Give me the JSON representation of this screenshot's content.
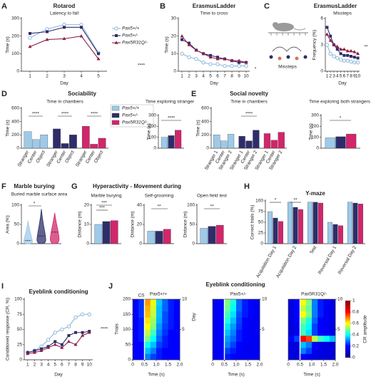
{
  "chart_data": [
    {
      "type": "line",
      "panel": "A",
      "title": "Rotarod",
      "subtitle": "Latency to fall",
      "xlabel": "Day",
      "ylabel": "Time (s)",
      "x": [
        1,
        2,
        3,
        4,
        5
      ],
      "xlim": [
        0.5,
        5.5
      ],
      "xticks": [
        1,
        2,
        3,
        4,
        5
      ],
      "ylim": [
        0,
        300
      ],
      "yticks": [
        0,
        100,
        200,
        300
      ],
      "legend": "right",
      "series": [
        {
          "name": "Pax5+/+",
          "color": "#8fb8dc",
          "marker": "circle",
          "values": [
            190,
            240,
            265,
            265,
            105
          ]
        },
        {
          "name": "Pax5+/-",
          "color": "#2e2d6b",
          "marker": "square",
          "values": [
            215,
            225,
            250,
            250,
            100
          ]
        },
        {
          "name": "Pax5R31Q/-",
          "color": "#8c2147",
          "marker": "triangle",
          "values": [
            140,
            180,
            185,
            200,
            70
          ]
        }
      ],
      "annotations": [
        "****"
      ]
    },
    {
      "type": "line",
      "panel": "B",
      "title": "ErasmusLadder",
      "subtitle": "Time to cross",
      "xlabel": "Day",
      "ylabel": "Time (s)",
      "x": [
        1,
        2,
        3,
        4,
        5,
        6,
        7,
        8,
        9,
        10
      ],
      "xlim": [
        0.5,
        10.5
      ],
      "xticks": [
        1,
        2,
        3,
        4,
        5,
        6,
        7,
        8,
        9,
        10
      ],
      "ylim": [
        0,
        30
      ],
      "yticks": [
        0,
        10,
        20,
        30
      ],
      "series": [
        {
          "color": "#8fb8dc",
          "marker": "circle",
          "values": [
            10,
            8,
            7,
            5,
            4,
            4,
            3,
            3,
            3,
            3
          ]
        },
        {
          "color": "#2e2d6b",
          "marker": "square",
          "values": [
            18,
            16,
            12,
            10,
            9,
            8,
            7,
            6,
            5,
            5
          ]
        },
        {
          "color": "#8c2147",
          "marker": "triangle",
          "values": [
            20,
            15,
            12,
            10,
            8,
            7,
            7,
            6,
            6,
            5
          ]
        }
      ],
      "annotations": [
        "*"
      ]
    },
    {
      "type": "line",
      "panel": "C",
      "title": "ErasmusLadder",
      "subtitle": "Missteps",
      "illustration_label": "Missteps",
      "xlabel": "Day",
      "ylabel": "Frequency (%)",
      "x": [
        1,
        2,
        3,
        4,
        5,
        6,
        7,
        8,
        9,
        10
      ],
      "xlim": [
        0.5,
        10.5
      ],
      "xticks": [
        1,
        2,
        3,
        4,
        5,
        6,
        7,
        8,
        9,
        10
      ],
      "ylim": [
        0,
        6
      ],
      "yticks": [
        0,
        3,
        6
      ],
      "series": [
        {
          "color": "#8fb8dc",
          "marker": "circle",
          "values": [
            3,
            2,
            1.7,
            1.5,
            1.3,
            1.2,
            1.2,
            1.1,
            1,
            1
          ]
        },
        {
          "color": "#2e2d6b",
          "marker": "square",
          "values": [
            5,
            4,
            3,
            2.5,
            2,
            1.8,
            1.8,
            1.7,
            1.6,
            1.5
          ]
        },
        {
          "color": "#8c2147",
          "marker": "triangle",
          "values": [
            4.2,
            3.5,
            3,
            2.8,
            2.5,
            2.5,
            2.3,
            2.3,
            2.2,
            2
          ]
        }
      ],
      "annotations": [
        "**"
      ]
    },
    {
      "type": "blockbar",
      "panel": "D",
      "title": "Sociability",
      "subtitle": "Time in chambers",
      "ylabel": "Time (s)",
      "categories": [
        "Stranger",
        "Center",
        "Object"
      ],
      "ylim": [
        0,
        600
      ],
      "yticks": [
        0,
        200,
        400,
        600
      ],
      "legend": "top",
      "series": [
        {
          "name": "Pax5+/+",
          "color": "#9ecae9",
          "values": [
            250,
            130,
            200
          ]
        },
        {
          "name": "Pax5+/-",
          "color": "#2e2d6b",
          "values": [
            290,
            70,
            200
          ]
        },
        {
          "name": "Pax5R31Q/-",
          "color": "#d1266b",
          "values": [
            330,
            60,
            150
          ]
        }
      ],
      "annotations": [
        "****",
        "****",
        "****"
      ]
    },
    {
      "type": "bar",
      "subtitle": "Time exploring stranger",
      "ylabel": "Time (s)",
      "ylim": [
        0,
        300
      ],
      "yticks": [
        0,
        100,
        200,
        300
      ],
      "series": [
        {
          "color": "#9ecae9",
          "values": [
            100
          ]
        },
        {
          "color": "#2e2d6b",
          "values": [
            115
          ]
        },
        {
          "color": "#d1266b",
          "values": [
            165
          ]
        }
      ],
      "annotations": [
        "****"
      ]
    },
    {
      "type": "blockbar",
      "panel": "E",
      "title": "Social novelty",
      "subtitle": "Time in chambers",
      "ylabel": "Time (s)",
      "categories": [
        "Stranger 1",
        "Center",
        "Stranger 2"
      ],
      "ylim": [
        0,
        600
      ],
      "yticks": [
        0,
        200,
        400,
        600
      ],
      "series": [
        {
          "color": "#9ecae9",
          "values": [
            200,
            110,
            210
          ]
        },
        {
          "color": "#2e2d6b",
          "values": [
            180,
            110,
            270
          ]
        },
        {
          "color": "#d1266b",
          "values": [
            220,
            120,
            240
          ]
        }
      ],
      "annotations": [
        "****"
      ]
    },
    {
      "type": "bar",
      "subtitle": "Time exploring both strangers",
      "ylabel": "Time (s)",
      "ylim": [
        0,
        300
      ],
      "yticks": [
        0,
        100,
        200,
        300
      ],
      "series": [
        {
          "color": "#9ecae9",
          "values": [
            95
          ]
        },
        {
          "color": "#2e2d6b",
          "values": [
            105
          ]
        },
        {
          "color": "#d1266b",
          "values": [
            130
          ]
        }
      ],
      "annotations": [
        "*"
      ]
    },
    {
      "type": "violin",
      "panel": "F",
      "title": "Marble burying",
      "subtitle": "Buried marble surface area",
      "ylabel": "Area (%)",
      "ylim": [
        0,
        100
      ],
      "yticks": [
        0,
        50,
        100
      ],
      "colors": [
        "#9ecae9",
        "#2e2d6b",
        "#d1266b"
      ],
      "medians": [
        8,
        20,
        30
      ],
      "maxima": [
        60,
        90,
        80
      ],
      "annotations": [
        "*"
      ]
    },
    {
      "type": "bar",
      "panel": "G",
      "title": "Hyperactivity - Movement during",
      "subtitle": "Marble burying",
      "ylabel": "Distance (m)",
      "ylim": [
        0,
        20
      ],
      "yticks": [
        0,
        10,
        20
      ],
      "series": [
        {
          "color": "#9ecae9",
          "values": [
            10
          ]
        },
        {
          "color": "#2e2d6b",
          "values": [
            11.5
          ]
        },
        {
          "color": "#d1266b",
          "values": [
            12
          ]
        }
      ],
      "annotations": [
        "***",
        "***"
      ]
    },
    {
      "type": "bar",
      "subtitle": "Self-grooming",
      "ylabel": "Distance (m)",
      "ylim": [
        0,
        40
      ],
      "yticks": [
        0,
        20,
        40
      ],
      "series": [
        {
          "color": "#9ecae9",
          "values": [
            13
          ]
        },
        {
          "color": "#2e2d6b",
          "values": [
            13
          ]
        },
        {
          "color": "#d1266b",
          "values": [
            15
          ]
        }
      ],
      "annotations": [
        "**"
      ]
    },
    {
      "type": "bar",
      "subtitle": "Open field test",
      "ylabel": "Distance (m)",
      "ylim": [
        0,
        100
      ],
      "yticks": [
        0,
        50,
        100
      ],
      "series": [
        {
          "color": "#9ecae9",
          "values": [
            40
          ]
        },
        {
          "color": "#2e2d6b",
          "values": [
            45
          ]
        },
        {
          "color": "#d1266b",
          "values": [
            48
          ]
        }
      ],
      "annotations": [
        "**"
      ]
    },
    {
      "type": "bar",
      "panel": "H",
      "title": "Y-maze",
      "ylabel": "Correct trials (%)",
      "categories": [
        "Acquisition Day 1",
        "Acquisition Day 2",
        "Test",
        "Reversal Day 1",
        "Reversal Day 2"
      ],
      "ylim": [
        0,
        100
      ],
      "yticks": [
        0,
        25,
        50,
        75,
        100
      ],
      "series": [
        {
          "color": "#9ecae9",
          "values": [
            75,
            97,
            97,
            50,
            97
          ]
        },
        {
          "color": "#2e2d6b",
          "values": [
            60,
            85,
            97,
            45,
            95
          ]
        },
        {
          "color": "#d1266b",
          "values": [
            52,
            80,
            95,
            42,
            93
          ]
        }
      ],
      "annotations": [
        "*",
        "**"
      ]
    },
    {
      "type": "line",
      "panel": "I",
      "title": "Eyeblink conditioning",
      "xlabel": "Day",
      "ylabel": "Conditioned response (CR, %)",
      "x": [
        1,
        2,
        3,
        4,
        5,
        6,
        7,
        8,
        9,
        10
      ],
      "xlim": [
        0.5,
        10.5
      ],
      "xticks": [
        1,
        2,
        3,
        4,
        5,
        6,
        7,
        8,
        9,
        10
      ],
      "ylim": [
        0,
        100
      ],
      "yticks": [
        0,
        25,
        50,
        75,
        100
      ],
      "series": [
        {
          "color": "#8fb8dc",
          "marker": "circle",
          "values": [
            12,
            15,
            22,
            33,
            45,
            50,
            55,
            70,
            75,
            75
          ]
        },
        {
          "color": "#2e2d6b",
          "marker": "square",
          "values": [
            12,
            15,
            18,
            22,
            30,
            25,
            40,
            45,
            45,
            47
          ]
        },
        {
          "color": "#8c2147",
          "marker": "triangle",
          "values": [
            10,
            12,
            15,
            20,
            25,
            20,
            30,
            25,
            40,
            45
          ]
        }
      ],
      "annotations": [
        "****"
      ]
    },
    {
      "type": "heatmap",
      "panel": "J",
      "title": "Eyeblink conditioning",
      "subtitle": "Pax5+/+",
      "xlabel": "Time (s)",
      "ylabel": "Trials",
      "y2label": "Day",
      "xlim": [
        0,
        2
      ],
      "xticks": [
        0,
        0.5,
        {
          "value": 1,
          "label": "1.0"
        },
        1.5,
        {
          "value": 2,
          "label": "2.0"
        }
      ],
      "ylim": [
        0,
        200
      ],
      "yticks": [
        0,
        50,
        100,
        150,
        200
      ],
      "y2lim": [
        0,
        10
      ],
      "y2ticks": [
        5,
        10
      ],
      "vline": 0.5,
      "vline_label": "CS",
      "matrix": [
        [
          0.2,
          0.2,
          0.3,
          0.25,
          0.22,
          0.2,
          0.2,
          0.2
        ],
        [
          0.2,
          0.2,
          0.35,
          0.3,
          0.22,
          0.2,
          0.2,
          0.2
        ],
        [
          0.2,
          0.2,
          0.4,
          0.35,
          0.25,
          0.22,
          0.2,
          0.2
        ],
        [
          0.2,
          0.22,
          0.5,
          0.4,
          0.28,
          0.22,
          0.2,
          0.2
        ],
        [
          0.2,
          0.22,
          0.55,
          0.45,
          0.3,
          0.24,
          0.2,
          0.2
        ],
        [
          0.2,
          0.22,
          0.6,
          0.5,
          0.32,
          0.25,
          0.22,
          0.2
        ],
        [
          0.2,
          0.22,
          0.62,
          0.52,
          0.34,
          0.26,
          0.22,
          0.2
        ],
        [
          0.2,
          0.24,
          0.65,
          0.55,
          0.35,
          0.26,
          0.22,
          0.2
        ],
        [
          0.2,
          0.24,
          0.66,
          0.56,
          0.35,
          0.28,
          0.22,
          0.2
        ],
        [
          0.2,
          0.24,
          0.68,
          0.58,
          0.36,
          0.28,
          0.22,
          0.2
        ]
      ]
    },
    {
      "type": "heatmap",
      "subtitle": "Pax5+/-",
      "xlabel": "Time (s)",
      "xlim": [
        0,
        2
      ],
      "xticks": [
        0,
        0.5,
        {
          "value": 1,
          "label": "1.0"
        },
        1.5,
        {
          "value": 2,
          "label": "2.0"
        }
      ],
      "y2lim": [
        0,
        10
      ],
      "y2ticks": [
        5,
        10
      ],
      "vline": 0.5,
      "matrix": [
        [
          0.18,
          0.18,
          0.22,
          0.2,
          0.18,
          0.18,
          0.18,
          0.18
        ],
        [
          0.18,
          0.18,
          0.25,
          0.22,
          0.2,
          0.18,
          0.18,
          0.18
        ],
        [
          0.18,
          0.18,
          0.3,
          0.25,
          0.2,
          0.18,
          0.18,
          0.18
        ],
        [
          0.18,
          0.18,
          0.32,
          0.28,
          0.22,
          0.2,
          0.18,
          0.18
        ],
        [
          0.18,
          0.2,
          0.35,
          0.3,
          0.22,
          0.2,
          0.18,
          0.18
        ],
        [
          0.18,
          0.2,
          0.38,
          0.32,
          0.24,
          0.2,
          0.18,
          0.18
        ],
        [
          0.18,
          0.2,
          0.42,
          0.35,
          0.25,
          0.2,
          0.18,
          0.18
        ],
        [
          0.18,
          0.2,
          0.45,
          0.38,
          0.26,
          0.22,
          0.2,
          0.18
        ],
        [
          0.18,
          0.2,
          0.48,
          0.4,
          0.28,
          0.22,
          0.2,
          0.18
        ],
        [
          0.18,
          0.2,
          0.5,
          0.42,
          0.28,
          0.22,
          0.2,
          0.18
        ]
      ]
    },
    {
      "type": "heatmap",
      "subtitle": "Pax5R31Q/-",
      "xlabel": "Time (s)",
      "xlim": [
        0,
        2
      ],
      "xticks": [
        0,
        0.5,
        {
          "value": 1,
          "label": "1.0"
        },
        1.5,
        {
          "value": 2,
          "label": "2.0"
        }
      ],
      "y2lim": [
        0,
        10
      ],
      "y2ticks": [
        5,
        10
      ],
      "vline": 0.5,
      "matrix": [
        [
          0.15,
          0.15,
          0.2,
          0.18,
          0.16,
          0.15,
          0.15,
          0.15
        ],
        [
          0.15,
          0.15,
          0.3,
          0.25,
          0.18,
          0.16,
          0.15,
          0.15
        ],
        [
          0.15,
          0.16,
          0.35,
          0.3,
          0.2,
          0.16,
          0.15,
          0.15
        ],
        [
          0.2,
          0.25,
          0.8,
          0.75,
          0.55,
          0.45,
          0.4,
          0.35
        ],
        [
          0.15,
          0.18,
          0.45,
          0.38,
          0.25,
          0.2,
          0.18,
          0.16
        ],
        [
          0.15,
          0.18,
          0.45,
          0.4,
          0.25,
          0.2,
          0.18,
          0.16
        ],
        [
          0.15,
          0.2,
          0.5,
          0.42,
          0.28,
          0.2,
          0.18,
          0.16
        ],
        [
          0.15,
          0.2,
          0.6,
          0.5,
          0.3,
          0.22,
          0.18,
          0.16
        ],
        [
          0.15,
          0.2,
          0.55,
          0.48,
          0.3,
          0.22,
          0.18,
          0.16
        ],
        [
          0.15,
          0.2,
          0.6,
          0.5,
          0.3,
          0.22,
          0.18,
          0.16
        ]
      ]
    },
    {
      "type": "colorbar",
      "label": "CR amplitude",
      "lim": [
        0,
        1
      ],
      "ticks": [
        0,
        0.2,
        0.4,
        0.6,
        0.8,
        1
      ],
      "colors": [
        "#000080",
        "#0000ff",
        "#00ffff",
        "#ffff00",
        "#ff0000",
        "#800000"
      ]
    }
  ]
}
